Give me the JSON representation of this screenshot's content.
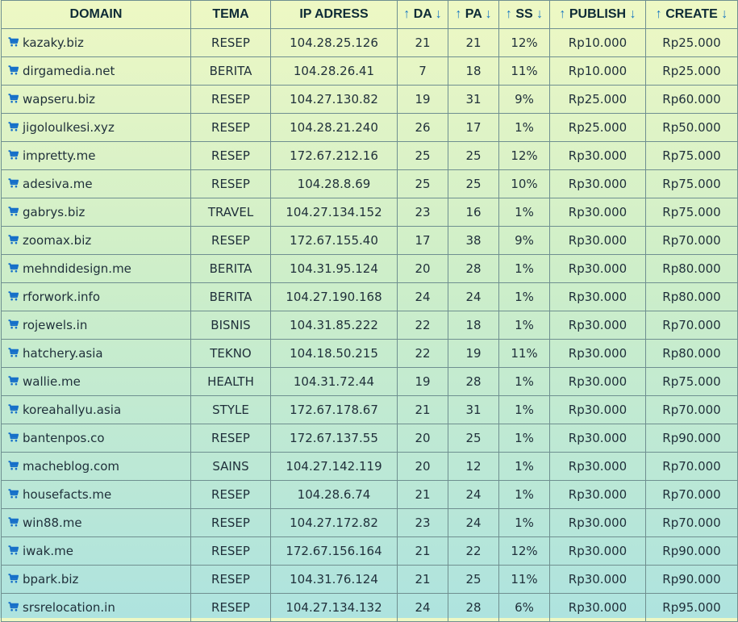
{
  "headers": {
    "domain": "DOMAIN",
    "tema": "TEMA",
    "ip": "IP ADRESS",
    "da": "DA",
    "pa": "PA",
    "ss": "SS",
    "publish": "PUBLISH",
    "create": "CREATE",
    "up_arrow": "↑",
    "down_arrow": "↓"
  },
  "icons": {
    "cart": "cart-icon"
  },
  "colors": {
    "accent": "#1770c9"
  },
  "rows": [
    {
      "domain": "kazaky.biz",
      "tema": "RESEP",
      "ip": "104.28.25.126",
      "da": "21",
      "pa": "21",
      "ss": "12%",
      "publish": "Rp10.000",
      "create": "Rp25.000"
    },
    {
      "domain": "dirgamedia.net",
      "tema": "BERITA",
      "ip": "104.28.26.41",
      "da": "7",
      "pa": "18",
      "ss": "11%",
      "publish": "Rp10.000",
      "create": "Rp25.000"
    },
    {
      "domain": "wapseru.biz",
      "tema": "RESEP",
      "ip": "104.27.130.82",
      "da": "19",
      "pa": "31",
      "ss": "9%",
      "publish": "Rp25.000",
      "create": "Rp60.000"
    },
    {
      "domain": "jigoloulkesi.xyz",
      "tema": "RESEP",
      "ip": "104.28.21.240",
      "da": "26",
      "pa": "17",
      "ss": "1%",
      "publish": "Rp25.000",
      "create": "Rp50.000"
    },
    {
      "domain": "impretty.me",
      "tema": "RESEP",
      "ip": "172.67.212.16",
      "da": "25",
      "pa": "25",
      "ss": "12%",
      "publish": "Rp30.000",
      "create": "Rp75.000"
    },
    {
      "domain": "adesiva.me",
      "tema": "RESEP",
      "ip": "104.28.8.69",
      "da": "25",
      "pa": "25",
      "ss": "10%",
      "publish": "Rp30.000",
      "create": "Rp75.000"
    },
    {
      "domain": "gabrys.biz",
      "tema": "TRAVEL",
      "ip": "104.27.134.152",
      "da": "23",
      "pa": "16",
      "ss": "1%",
      "publish": "Rp30.000",
      "create": "Rp75.000"
    },
    {
      "domain": "zoomax.biz",
      "tema": "RESEP",
      "ip": "172.67.155.40",
      "da": "17",
      "pa": "38",
      "ss": "9%",
      "publish": "Rp30.000",
      "create": "Rp70.000"
    },
    {
      "domain": "mehndidesign.me",
      "tema": "BERITA",
      "ip": "104.31.95.124",
      "da": "20",
      "pa": "28",
      "ss": "1%",
      "publish": "Rp30.000",
      "create": "Rp80.000"
    },
    {
      "domain": "rforwork.info",
      "tema": "BERITA",
      "ip": "104.27.190.168",
      "da": "24",
      "pa": "24",
      "ss": "1%",
      "publish": "Rp30.000",
      "create": "Rp80.000"
    },
    {
      "domain": "rojewels.in",
      "tema": "BISNIS",
      "ip": "104.31.85.222",
      "da": "22",
      "pa": "18",
      "ss": "1%",
      "publish": "Rp30.000",
      "create": "Rp70.000"
    },
    {
      "domain": "hatchery.asia",
      "tema": "TEKNO",
      "ip": "104.18.50.215",
      "da": "22",
      "pa": "19",
      "ss": "11%",
      "publish": "Rp30.000",
      "create": "Rp80.000"
    },
    {
      "domain": "wallie.me",
      "tema": "HEALTH",
      "ip": "104.31.72.44",
      "da": "19",
      "pa": "28",
      "ss": "1%",
      "publish": "Rp30.000",
      "create": "Rp75.000"
    },
    {
      "domain": "koreahallyu.asia",
      "tema": "STYLE",
      "ip": "172.67.178.67",
      "da": "21",
      "pa": "31",
      "ss": "1%",
      "publish": "Rp30.000",
      "create": "Rp70.000"
    },
    {
      "domain": "bantenpos.co",
      "tema": "RESEP",
      "ip": "172.67.137.55",
      "da": "20",
      "pa": "25",
      "ss": "1%",
      "publish": "Rp30.000",
      "create": "Rp90.000"
    },
    {
      "domain": "macheblog.com",
      "tema": "SAINS",
      "ip": "104.27.142.119",
      "da": "20",
      "pa": "12",
      "ss": "1%",
      "publish": "Rp30.000",
      "create": "Rp70.000"
    },
    {
      "domain": "housefacts.me",
      "tema": "RESEP",
      "ip": "104.28.6.74",
      "da": "21",
      "pa": "24",
      "ss": "1%",
      "publish": "Rp30.000",
      "create": "Rp70.000"
    },
    {
      "domain": "win88.me",
      "tema": "RESEP",
      "ip": "104.27.172.82",
      "da": "23",
      "pa": "24",
      "ss": "1%",
      "publish": "Rp30.000",
      "create": "Rp70.000"
    },
    {
      "domain": "iwak.me",
      "tema": "RESEP",
      "ip": "172.67.156.164",
      "da": "21",
      "pa": "22",
      "ss": "12%",
      "publish": "Rp30.000",
      "create": "Rp90.000"
    },
    {
      "domain": "bpark.biz",
      "tema": "RESEP",
      "ip": "104.31.76.124",
      "da": "21",
      "pa": "25",
      "ss": "11%",
      "publish": "Rp30.000",
      "create": "Rp90.000"
    },
    {
      "domain": "srsrelocation.in",
      "tema": "RESEP",
      "ip": "104.27.134.132",
      "da": "24",
      "pa": "28",
      "ss": "6%",
      "publish": "Rp30.000",
      "create": "Rp95.000"
    }
  ]
}
